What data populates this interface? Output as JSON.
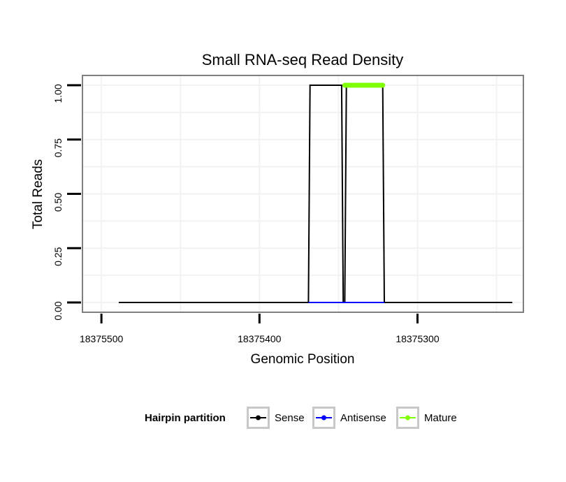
{
  "chart_data": {
    "type": "line",
    "title": "Small RNA-seq Read Density",
    "xlabel": "Genomic Position",
    "ylabel": "Total Reads",
    "x_reversed": true,
    "xlim": [
      18375512,
      18375233
    ],
    "ylim": [
      -0.045,
      1.045
    ],
    "x_ticks": [
      18375500,
      18375400,
      18375300
    ],
    "x_tick_labels": [
      "18375500",
      "18375400",
      "18375300"
    ],
    "y_ticks": [
      0,
      0.25,
      0.5,
      0.75,
      1.0
    ],
    "y_tick_labels": [
      "0.00",
      "0.25",
      "0.50",
      "0.75",
      "1.00"
    ],
    "grid": true,
    "legend": {
      "title": "Hairpin partition",
      "position": "bottom",
      "entries": [
        {
          "label": "Sense",
          "color": "#000000"
        },
        {
          "label": "Antisense",
          "color": "#0000ff"
        },
        {
          "label": "Mature",
          "color": "#7fff00"
        }
      ]
    },
    "series": [
      {
        "name": "Sense",
        "color": "#000000",
        "x": [
          18375489,
          18375369,
          18375368,
          18375348,
          18375347,
          18375346,
          18375345,
          18375322,
          18375321,
          18375240
        ],
        "y": [
          0,
          0,
          1,
          1,
          0,
          0,
          1,
          1,
          0,
          0
        ]
      },
      {
        "name": "Antisense",
        "color": "#0000ff",
        "x": [
          18375369,
          18375321
        ],
        "y": [
          0,
          0
        ]
      },
      {
        "name": "Mature",
        "color": "#7fff00",
        "x": [
          18375346,
          18375322
        ],
        "y": [
          1,
          1
        ]
      }
    ]
  }
}
